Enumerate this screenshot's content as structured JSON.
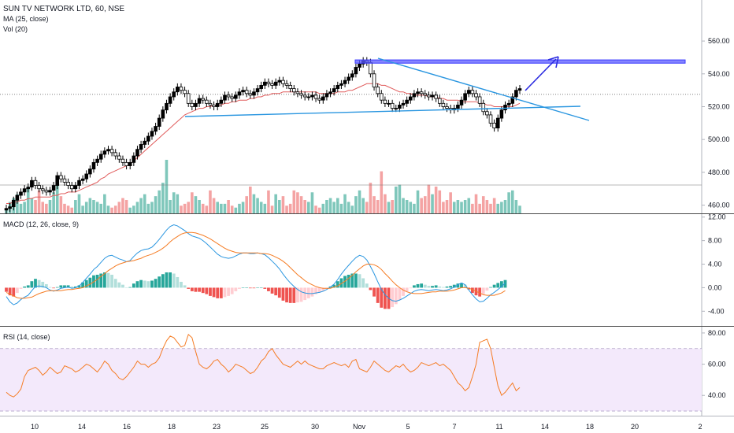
{
  "header": {
    "title": "SUN TV NETWORK LTD, 60, NSE",
    "ma_label": "MA (25, close)",
    "vol_label": "Vol (20)",
    "macd_label": "MACD (12, 26, close, 9)",
    "rsi_label": "RSI (14, close)"
  },
  "colors": {
    "up": "#000000",
    "down": "#ffffff",
    "ma": "#e05a5a",
    "vol_up": "#7fc7bb",
    "vol_down": "#f4a3a3",
    "macd_line": "#2a96e0",
    "signal_line": "#f57c24",
    "hist_up_strong": "#26a69a",
    "hist_up_weak": "#b2dfdb",
    "hist_down_strong": "#ef5350",
    "hist_down_weak": "#ffcdd2",
    "rsi_line": "#f57c24",
    "rsi_band": "#f3e9fb",
    "trendline": "#2a96e0",
    "resistance_box": "#5b5bff",
    "arrow": "#2a2ae0"
  },
  "chart_data": [
    {
      "type": "candlestick",
      "panel": "price",
      "title": "SUN TV NETWORK LTD, 60, NSE",
      "ylim": [
        455,
        585
      ],
      "y_ticks": [
        "560.00",
        "540.00",
        "520.00",
        "500.00",
        "480.00",
        "460.00"
      ],
      "x_tick_labels": [
        "10",
        "14",
        "16",
        "18",
        "23",
        "25",
        "30",
        "Nov",
        "5",
        "7",
        "11",
        "14",
        "18",
        "20",
        "2"
      ],
      "close_series": [
        458,
        459,
        463,
        466,
        468,
        470,
        471,
        475,
        472,
        470,
        469,
        468,
        469,
        472,
        478,
        476,
        474,
        472,
        470,
        472,
        475,
        476,
        479,
        482,
        486,
        488,
        491,
        493,
        494,
        492,
        490,
        488,
        486,
        484,
        486,
        490,
        494,
        497,
        499,
        502,
        505,
        508,
        513,
        518,
        522,
        526,
        529,
        532,
        530,
        528,
        522,
        520,
        522,
        525,
        524,
        522,
        521,
        520,
        522,
        524,
        527,
        526,
        525,
        527,
        529,
        530,
        528,
        527,
        529,
        531,
        533,
        535,
        534,
        533,
        535,
        536,
        534,
        533,
        531,
        529,
        528,
        527,
        526,
        526,
        527,
        525,
        524,
        526,
        528,
        529,
        531,
        533,
        534,
        536,
        538,
        540,
        544,
        546,
        548,
        547,
        540,
        532,
        528,
        524,
        522,
        522,
        519,
        519,
        521,
        522,
        524,
        526,
        528,
        529,
        528,
        527,
        526,
        527,
        525,
        522,
        520,
        519,
        518,
        519,
        521,
        524,
        528,
        530,
        528,
        526,
        522,
        517,
        515,
        510,
        507,
        513,
        518,
        521,
        522,
        526,
        530,
        531
      ],
      "ma25_series": [
        461,
        461,
        462,
        462,
        463,
        463,
        464,
        464,
        465,
        465,
        465,
        465,
        465,
        466,
        466,
        467,
        467,
        468,
        468,
        468,
        469,
        470,
        471,
        472,
        473,
        474,
        476,
        477,
        479,
        480,
        481,
        482,
        483,
        484,
        485,
        487,
        489,
        491,
        493,
        495,
        497,
        499,
        501,
        503,
        505,
        507,
        509,
        511,
        513,
        515,
        516,
        517,
        518,
        519,
        519,
        520,
        520,
        521,
        521,
        521,
        522,
        522,
        523,
        523,
        524,
        524,
        524,
        525,
        525,
        526,
        526,
        527,
        527,
        528,
        528,
        528,
        529,
        529,
        529,
        529,
        529,
        529,
        529,
        529,
        529,
        529,
        528,
        528,
        528,
        528,
        528,
        529,
        529,
        529,
        530,
        530,
        531,
        532,
        533,
        534,
        534,
        534,
        534,
        533,
        533,
        532,
        531,
        530,
        529,
        529,
        528,
        528,
        527,
        527,
        527,
        527,
        526,
        526,
        526,
        525,
        525,
        524,
        524,
        524,
        524,
        523,
        523,
        523,
        523,
        523,
        522,
        522,
        521,
        521,
        520,
        520,
        520,
        520,
        520,
        520,
        521,
        522
      ],
      "volume_series": [
        2,
        6,
        8,
        10,
        5,
        6,
        14,
        8,
        7,
        12,
        6,
        5,
        7,
        11,
        15,
        9,
        5,
        4,
        3,
        7,
        10,
        4,
        6,
        8,
        7,
        6,
        5,
        10,
        4,
        3,
        4,
        6,
        8,
        7,
        3,
        4,
        6,
        8,
        10,
        5,
        6,
        9,
        12,
        16,
        28,
        7,
        11,
        10,
        4,
        5,
        6,
        11,
        9,
        7,
        5,
        4,
        12,
        8,
        6,
        5,
        5,
        7,
        4,
        3,
        5,
        6,
        9,
        14,
        10,
        8,
        6,
        5,
        12,
        4,
        10,
        7,
        9,
        4,
        5,
        12,
        11,
        9,
        7,
        6,
        11,
        4,
        3,
        5,
        7,
        8,
        6,
        8,
        5,
        10,
        6,
        4,
        9,
        12,
        8,
        6,
        16,
        9,
        7,
        22,
        10,
        6,
        7,
        14,
        15,
        8,
        7,
        6,
        5,
        12,
        8,
        9,
        15,
        10,
        14,
        12,
        6,
        7,
        11,
        6,
        7,
        6,
        7,
        8,
        5,
        10,
        5,
        9,
        7,
        5,
        8,
        5,
        6,
        7,
        11,
        12,
        7,
        4
      ],
      "horizontal_levels": [
        527.5
      ],
      "annotations": [
        {
          "type": "resistance_box",
          "from": 548.5,
          "to": 546.5
        },
        {
          "type": "trendline",
          "label": "support"
        },
        {
          "type": "trendline",
          "label": "resistance"
        },
        {
          "type": "arrow",
          "direction": "up"
        }
      ]
    },
    {
      "type": "line",
      "panel": "macd",
      "title": "MACD (12, 26, close, 9)",
      "ylim": [
        -6.5,
        12.5
      ],
      "y_ticks": [
        "12.00",
        "8.00",
        "4.00",
        "0.00",
        "-4.00"
      ],
      "series": [
        {
          "values": [
            -1.5,
            -2.4,
            -2.9,
            -2.6,
            -2.0,
            -1.6,
            -1.3,
            -0.5,
            0.2,
            0.3,
            0.2,
            0.0,
            -0.4,
            -0.6,
            -0.4,
            -0.1,
            0.0,
            0.1,
            -0.1,
            0.0,
            0.3,
            0.9,
            1.6,
            2.3,
            3.1,
            3.6,
            4.3,
            5.0,
            5.4,
            5.5,
            5.2,
            4.9,
            4.7,
            4.4,
            4.6,
            5.3,
            5.9,
            6.3,
            6.5,
            6.6,
            6.9,
            7.5,
            8.2,
            9.0,
            9.8,
            10.4,
            10.7,
            10.5,
            10.1,
            9.7,
            9.2,
            8.8,
            8.6,
            8.4,
            8.0,
            7.5,
            6.9,
            6.3,
            5.7,
            5.3,
            5.1,
            5.0,
            5.1,
            5.4,
            5.7,
            5.9,
            5.9,
            5.8,
            5.8,
            5.9,
            5.8,
            5.6,
            5.1,
            4.5,
            3.9,
            3.2,
            2.3,
            1.5,
            0.8,
            0.2,
            -0.3,
            -0.7,
            -0.9,
            -1.0,
            -1.0,
            -0.9,
            -0.8,
            -0.6,
            -0.3,
            0.1,
            0.6,
            1.4,
            2.3,
            3.1,
            3.8,
            4.5,
            5.1,
            5.5,
            5.3,
            4.7,
            3.6,
            2.4,
            1.0,
            -0.3,
            -1.2,
            -1.8,
            -2.2,
            -2.3,
            -2.1,
            -1.8,
            -1.4,
            -1.0,
            -0.6,
            -0.4,
            -0.3,
            -0.4,
            -0.5,
            -0.4,
            -0.3,
            -0.4,
            -0.5,
            -0.4,
            -0.2,
            0.1,
            0.5,
            0.8,
            0.5,
            -0.4,
            -1.2,
            -1.9,
            -2.4,
            -2.3,
            -1.8,
            -1.2,
            -0.8,
            -0.3,
            0.2,
            0.8
          ]
        },
        {
          "values": [
            -0.8,
            -1.1,
            -1.4,
            -1.7,
            -1.8,
            -1.8,
            -1.7,
            -1.6,
            -1.3,
            -1.0,
            -0.8,
            -0.6,
            -0.5,
            -0.5,
            -0.5,
            -0.5,
            -0.4,
            -0.3,
            -0.3,
            -0.2,
            -0.1,
            0.0,
            0.3,
            0.6,
            1.0,
            1.4,
            1.9,
            2.4,
            2.9,
            3.3,
            3.7,
            4.0,
            4.2,
            4.4,
            4.5,
            4.6,
            4.8,
            5.0,
            5.3,
            5.5,
            5.7,
            6.0,
            6.3,
            6.7,
            7.2,
            7.8,
            8.3,
            8.7,
            9.1,
            9.3,
            9.4,
            9.4,
            9.3,
            9.1,
            8.9,
            8.6,
            8.3,
            7.9,
            7.5,
            7.1,
            6.7,
            6.4,
            6.2,
            6.0,
            5.9,
            5.9,
            5.9,
            5.9,
            5.9,
            5.9,
            5.8,
            5.8,
            5.7,
            5.5,
            5.2,
            4.9,
            4.5,
            4.0,
            3.4,
            2.8,
            2.2,
            1.7,
            1.2,
            0.8,
            0.5,
            0.2,
            0.0,
            -0.1,
            -0.1,
            -0.1,
            0.1,
            0.3,
            0.7,
            1.1,
            1.6,
            2.1,
            2.7,
            3.2,
            3.7,
            4.0,
            4.0,
            3.9,
            3.6,
            3.1,
            2.4,
            1.8,
            1.1,
            0.5,
            0.0,
            -0.4,
            -0.7,
            -0.9,
            -1.0,
            -1.0,
            -1.0,
            -0.9,
            -0.8,
            -0.7,
            -0.7,
            -0.6,
            -0.6,
            -0.6,
            -0.5,
            -0.4,
            -0.2,
            0.0,
            0.0,
            -0.1,
            -0.3,
            -0.6,
            -0.9,
            -1.2,
            -1.3,
            -1.3,
            -1.3,
            -1.1,
            -0.9,
            -0.5
          ]
        }
      ],
      "histogram": [
        -0.7,
        -1.3,
        -1.5,
        -0.9,
        -0.2,
        0.2,
        0.4,
        1.1,
        1.5,
        1.3,
        1.0,
        0.6,
        0.1,
        -0.1,
        0.1,
        0.4,
        0.4,
        0.4,
        0.2,
        0.2,
        0.4,
        0.9,
        1.3,
        1.7,
        2.1,
        2.2,
        2.4,
        2.6,
        2.5,
        2.2,
        1.5,
        0.9,
        0.5,
        0.0,
        0.1,
        0.7,
        1.1,
        1.3,
        1.2,
        1.1,
        1.2,
        1.5,
        1.9,
        2.3,
        2.6,
        2.6,
        2.4,
        1.8,
        1.0,
        0.4,
        -0.2,
        -0.6,
        -0.7,
        -0.7,
        -0.9,
        -1.1,
        -1.4,
        -1.6,
        -1.8,
        -1.8,
        -1.6,
        -1.4,
        -1.1,
        -0.6,
        -0.2,
        0.0,
        0.0,
        -0.1,
        -0.1,
        0.0,
        0.0,
        -0.2,
        -0.6,
        -1.0,
        -1.3,
        -1.7,
        -2.2,
        -2.5,
        -2.6,
        -2.6,
        -2.5,
        -2.4,
        -2.1,
        -1.8,
        -1.5,
        -1.1,
        -0.8,
        -0.5,
        -0.2,
        0.2,
        0.5,
        1.1,
        1.6,
        2.0,
        2.2,
        2.4,
        2.4,
        2.3,
        1.6,
        0.7,
        -0.4,
        -1.5,
        -2.6,
        -3.4,
        -3.6,
        -3.6,
        -3.3,
        -2.8,
        -2.1,
        -1.4,
        -0.7,
        -0.1,
        0.4,
        0.6,
        0.7,
        0.5,
        0.3,
        0.3,
        0.4,
        0.2,
        0.1,
        0.2,
        0.3,
        0.5,
        0.7,
        0.8,
        0.5,
        -0.3,
        -0.9,
        -1.3,
        -1.5,
        -1.1,
        -0.5,
        0.1,
        0.5,
        0.8,
        1.1,
        1.3
      ]
    },
    {
      "type": "line",
      "panel": "rsi",
      "title": "RSI (14, close)",
      "ylim": [
        27,
        84
      ],
      "y_ticks": [
        "80.00",
        "60.00",
        "40.00"
      ],
      "band": [
        30,
        70
      ],
      "series": [
        {
          "values": [
            42,
            40,
            39,
            41,
            44,
            52,
            56,
            57,
            58,
            56,
            53,
            55,
            58,
            56,
            54,
            55,
            59,
            58,
            57,
            55,
            56,
            58,
            60,
            59,
            57,
            55,
            58,
            62,
            60,
            56,
            54,
            51,
            50,
            52,
            55,
            58,
            62,
            60,
            60,
            58,
            60,
            61,
            64,
            70,
            75,
            78,
            77,
            74,
            71,
            72,
            79,
            77,
            68,
            60,
            58,
            57,
            59,
            62,
            63,
            60,
            58,
            55,
            57,
            60,
            59,
            58,
            56,
            54,
            55,
            58,
            62,
            64,
            68,
            70,
            66,
            63,
            60,
            59,
            58,
            60,
            62,
            60,
            62,
            60,
            59,
            58,
            57,
            57,
            59,
            60,
            61,
            60,
            59,
            60,
            58,
            62,
            63,
            57,
            56,
            55,
            58,
            62,
            60,
            58,
            56,
            55,
            57,
            59,
            58,
            60,
            57,
            55,
            56,
            58,
            61,
            60,
            59,
            60,
            61,
            59,
            60,
            58,
            56,
            52,
            48,
            46,
            43,
            45,
            52,
            60,
            74,
            75,
            76,
            70,
            58,
            46,
            40,
            42,
            45,
            48,
            43,
            45
          ]
        }
      ]
    }
  ]
}
